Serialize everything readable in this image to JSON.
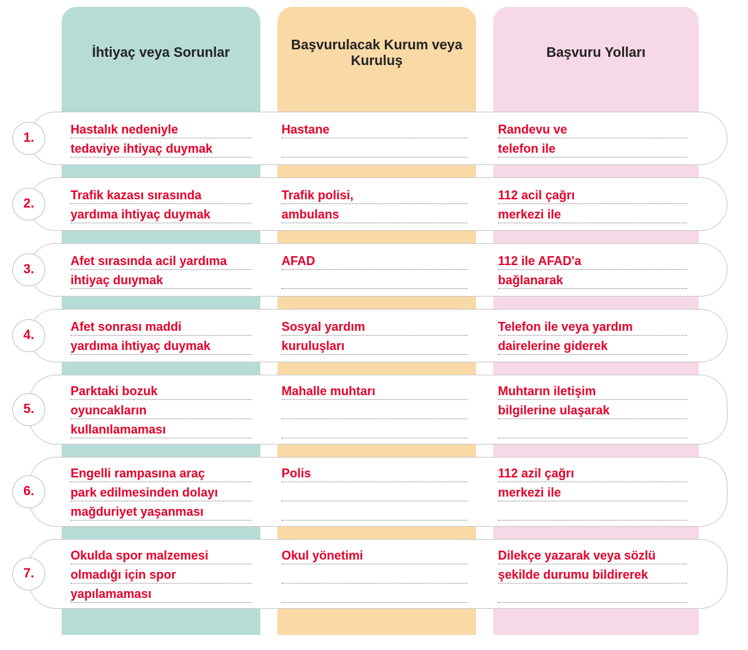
{
  "colors": {
    "col1_bg": "#b7dcd6",
    "col2_bg": "#f9d9a6",
    "col3_bg": "#f6d8e6",
    "answer_text": "#e3032a",
    "header_text": "#222222",
    "capsule_border": "#c8c8c8",
    "dotted": "#777777"
  },
  "headers": {
    "col1": "İhtiyaç veya Sorunlar",
    "col2": "Başvurulacak Kurum veya Kuruluş",
    "col3": "Başvuru Yolları"
  },
  "rows": [
    {
      "num": "1.",
      "need_l1": "Hastalık nedeniyle",
      "need_l2": "tedaviye ihtiyaç duymak",
      "need_l3": "",
      "inst_l1": "Hastane",
      "inst_l2": "",
      "inst_l3": "",
      "way_l1": "Randevu ve",
      "way_l2": "telefon ile",
      "way_l3": ""
    },
    {
      "num": "2.",
      "need_l1": "Trafik kazası sırasında",
      "need_l2": "yardıma ihtiyaç duymak",
      "need_l3": "",
      "inst_l1": "Trafik polisi,",
      "inst_l2": "ambulans",
      "inst_l3": "",
      "way_l1": "112 acil çağrı",
      "way_l2": "merkezi ile",
      "way_l3": ""
    },
    {
      "num": "3.",
      "need_l1": "Afet sırasında acil yardıma",
      "need_l2": "ihtiyaç duıymak",
      "need_l3": "",
      "inst_l1": "AFAD",
      "inst_l2": "",
      "inst_l3": "",
      "way_l1": "112 ile AFAD'a",
      "way_l2": "bağlanarak",
      "way_l3": ""
    },
    {
      "num": "4.",
      "need_l1": "Afet sonrası maddi",
      "need_l2": "yardıma ihtiyaç duymak",
      "need_l3": "",
      "inst_l1": "Sosyal yardım",
      "inst_l2": "kuruluşları",
      "inst_l3": "",
      "way_l1": "Telefon ile veya yardım",
      "way_l2": "dairelerine giderek",
      "way_l3": ""
    },
    {
      "num": "5.",
      "need_l1": "Parktaki bozuk",
      "need_l2": "oyuncakların",
      "need_l3": "kullanılamaması",
      "inst_l1": "Mahalle muhtarı",
      "inst_l2": "",
      "inst_l3": "",
      "way_l1": "Muhtarın iletişim",
      "way_l2": "bilgilerine ulaşarak",
      "way_l3": ""
    },
    {
      "num": "6.",
      "need_l1": "Engelli rampasına araç",
      "need_l2": "park edilmesinden dolayı",
      "need_l3": "mağduriyet yaşanması",
      "inst_l1": "Polis",
      "inst_l2": "",
      "inst_l3": "",
      "way_l1": "112 azil çağrı",
      "way_l2": "merkezi ile",
      "way_l3": ""
    },
    {
      "num": "7.",
      "need_l1": "Okulda spor malzemesi",
      "need_l2": "olmadığı için spor",
      "need_l3": "yapılamaması",
      "inst_l1": "Okul yönetimi",
      "inst_l2": "",
      "inst_l3": "",
      "way_l1": "Dilekçe yazarak veya sözlü",
      "way_l2": "şekilde durumu bildirerek",
      "way_l3": ""
    }
  ]
}
